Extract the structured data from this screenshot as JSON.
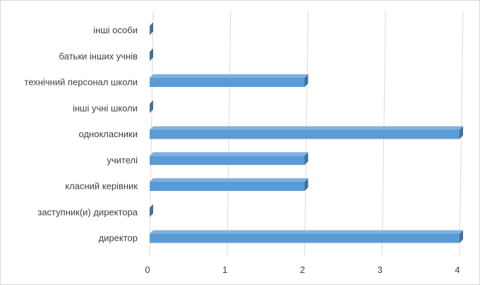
{
  "chart_data": {
    "type": "bar",
    "orientation": "horizontal",
    "style": "3d",
    "categories": [
      "інші особи",
      "батьки інших учнів",
      "технічний персонал школи",
      "інші учні школи",
      "однокласники",
      "учителі",
      "класний керівник",
      "заступник(и) директора",
      "директор"
    ],
    "values": [
      0,
      0,
      2,
      0,
      4,
      2,
      2,
      0,
      4
    ],
    "xlim": [
      0,
      4
    ],
    "xticks": [
      "0",
      "1",
      "2",
      "3",
      "4"
    ],
    "grid": true,
    "legend": "none",
    "colors": {
      "bar_front": "#5b9bd5",
      "bar_top": "#7fb1e0",
      "bar_side": "#41719c",
      "grid": "#d9d9d9",
      "text": "#404040"
    }
  }
}
